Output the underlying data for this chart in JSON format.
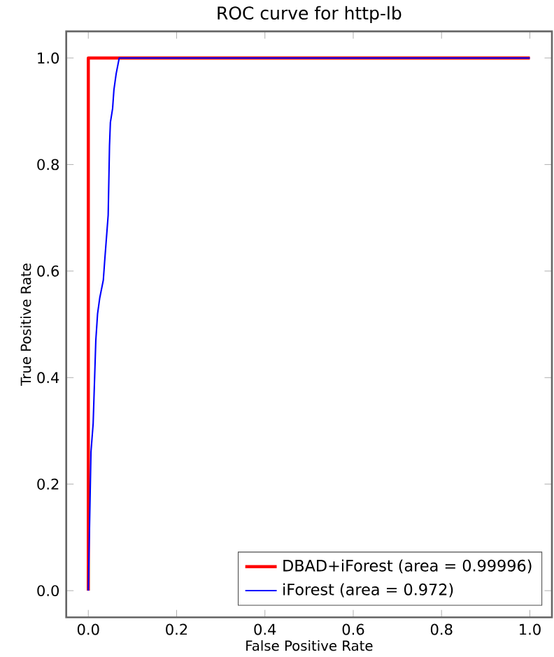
{
  "chart_data": {
    "type": "line",
    "title": "ROC curve for http-lb",
    "xlabel": "False Positive Rate",
    "ylabel": "True Positive Rate",
    "xlim": [
      -0.05,
      1.05
    ],
    "ylim": [
      -0.05,
      1.05
    ],
    "xticks": [
      {
        "value": 0,
        "label": "0.0"
      },
      {
        "value": 0.2,
        "label": "0.2"
      },
      {
        "value": 0.4,
        "label": "0.4"
      },
      {
        "value": 0.6,
        "label": "0.6"
      },
      {
        "value": 0.8,
        "label": "0.8"
      },
      {
        "value": 1,
        "label": "1.0"
      }
    ],
    "yticks": [
      {
        "value": 0,
        "label": "0.0"
      },
      {
        "value": 0.2,
        "label": "0.2"
      },
      {
        "value": 0.4,
        "label": "0.4"
      },
      {
        "value": 0.6,
        "label": "0.6"
      },
      {
        "value": 0.8,
        "label": "0.8"
      },
      {
        "value": 1,
        "label": "1.0"
      }
    ],
    "grid": false,
    "legend": "bottom right",
    "marker": "none",
    "line_style": "solid",
    "series": [
      {
        "name": "DBAD+iForest (area = 0.99996)",
        "color": "#ff0000",
        "x": [
          0,
          0,
          1
        ],
        "values": [
          0,
          1,
          1
        ]
      },
      {
        "name": "iForest (area = 0.972)",
        "color": "#0000ff",
        "x": [
          0,
          0.006,
          0.011,
          0.017,
          0.021,
          0.026,
          0.034,
          0.037,
          0.045,
          0.048,
          0.05,
          0.055,
          0.058,
          0.063,
          0.07,
          1
        ],
        "values": [
          0,
          0.26,
          0.314,
          0.47,
          0.52,
          0.55,
          0.583,
          0.618,
          0.705,
          0.835,
          0.879,
          0.905,
          0.94,
          0.97,
          1,
          1
        ]
      }
    ]
  }
}
